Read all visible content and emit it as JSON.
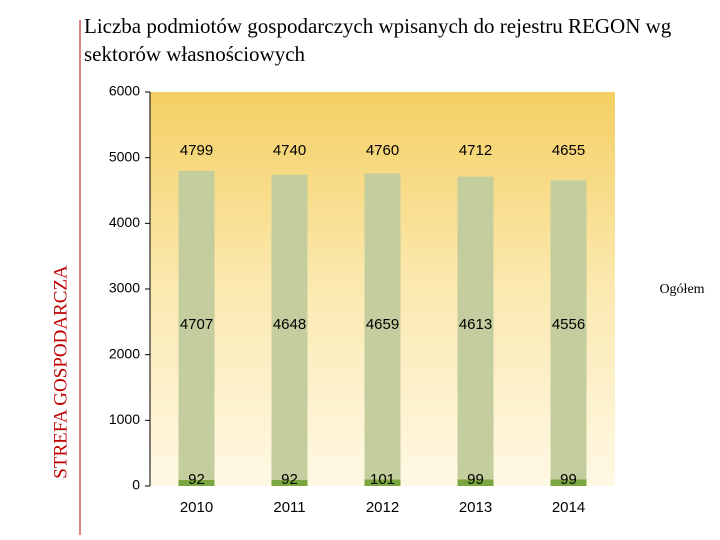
{
  "chart_data": {
    "type": "stacked-bar",
    "side_label": "STREFA GOSPODARCZA",
    "title": "Liczba podmiotów gospodarczych wpisanych do rejestru REGON wg sektorów własnościowych",
    "categories": [
      "2010",
      "2011",
      "2012",
      "2013",
      "2014"
    ],
    "series": [
      {
        "color": "#7aa63f",
        "values": [
          92,
          92,
          101,
          99,
          99
        ]
      },
      {
        "color": "#c4cd9e",
        "values": [
          4707,
          4648,
          4659,
          4613,
          4556
        ]
      }
    ],
    "totals": {
      "name": "Ogółem",
      "values": [
        4799,
        4740,
        4760,
        4712,
        4655
      ]
    },
    "ylim": [
      0,
      6000
    ],
    "yticks": [
      0,
      1000,
      2000,
      3000,
      4000,
      5000,
      6000
    ]
  }
}
